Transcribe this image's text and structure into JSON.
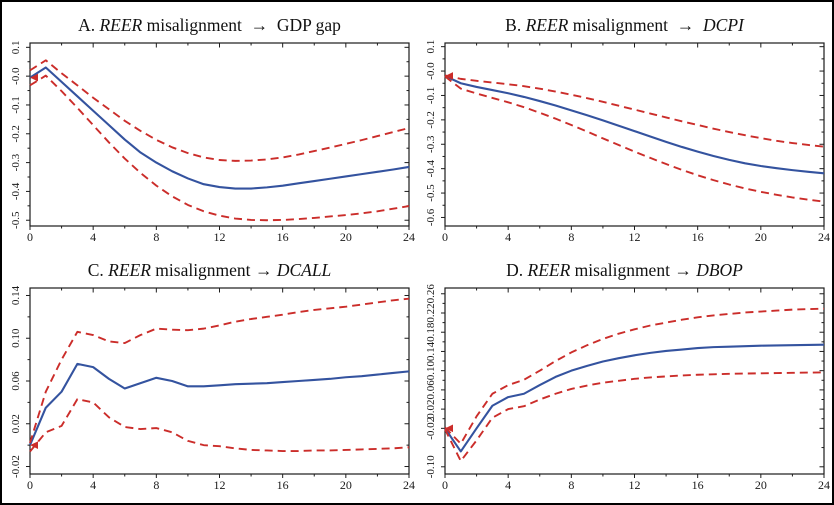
{
  "figure": {
    "background": "#ffffff",
    "border_color": "#000000"
  },
  "colors": {
    "irf_line": "#34539f",
    "ci_line": "#cb2d2a",
    "axis": "#1c1c1c",
    "tick_label": "#1a1a1a"
  },
  "chart_data": [
    {
      "type": "line",
      "panel": "A",
      "title_plain": "A. REER misalignment  →  GDP gap",
      "title_segments": [
        {
          "text": "A. ",
          "italic": false
        },
        {
          "text": "REER",
          "italic": true
        },
        {
          "text": " misalignment ",
          "italic": false
        },
        {
          "text": " → ",
          "italic": false
        },
        {
          "text": " GDP gap",
          "italic": false
        }
      ],
      "xlabel": "",
      "ylabel": "",
      "grid": false,
      "frame": true,
      "legend": null,
      "xlim": [
        0,
        24
      ],
      "ylim": [
        -0.52,
        0.115
      ],
      "xticks": {
        "values": [
          0,
          4,
          8,
          12,
          16,
          20,
          24
        ],
        "labels": [
          "0",
          "4",
          "8",
          "12",
          "16",
          "20",
          "24"
        ]
      },
      "xminor": [
        2,
        6,
        10,
        14,
        18,
        22
      ],
      "yticks": {
        "values": [
          0.1,
          0,
          -0.1,
          -0.2,
          -0.3,
          -0.4,
          -0.5
        ],
        "labels": [
          "0.1",
          "-0.0",
          "-0.1",
          "-0.2",
          "-0.3",
          "-0.4",
          "-0.5"
        ]
      },
      "x": [
        0,
        1,
        2,
        3,
        4,
        5,
        6,
        7,
        8,
        9,
        10,
        11,
        12,
        13,
        14,
        15,
        16,
        17,
        18,
        19,
        20,
        21,
        22,
        23,
        24
      ],
      "series": [
        {
          "name": "impulse response",
          "style": "solid",
          "color_key": "irf_line",
          "values": [
            -0.005,
            0.03,
            -0.02,
            -0.07,
            -0.12,
            -0.17,
            -0.22,
            -0.265,
            -0.3,
            -0.33,
            -0.355,
            -0.375,
            -0.385,
            -0.39,
            -0.39,
            -0.386,
            -0.38,
            -0.372,
            -0.364,
            -0.356,
            -0.348,
            -0.34,
            -0.332,
            -0.324,
            -0.315
          ]
        },
        {
          "name": "upper confidence band",
          "style": "dashed",
          "color_key": "ci_line",
          "values": [
            0.02,
            0.055,
            0.01,
            -0.032,
            -0.075,
            -0.115,
            -0.155,
            -0.19,
            -0.221,
            -0.247,
            -0.267,
            -0.282,
            -0.291,
            -0.294,
            -0.293,
            -0.289,
            -0.282,
            -0.272,
            -0.26,
            -0.248,
            -0.235,
            -0.222,
            -0.208,
            -0.194,
            -0.18
          ]
        },
        {
          "name": "lower confidence band",
          "style": "dashed",
          "color_key": "ci_line",
          "values": [
            -0.032,
            0.002,
            -0.052,
            -0.11,
            -0.17,
            -0.23,
            -0.286,
            -0.336,
            -0.38,
            -0.417,
            -0.447,
            -0.469,
            -0.484,
            -0.494,
            -0.499,
            -0.5,
            -0.499,
            -0.496,
            -0.492,
            -0.487,
            -0.482,
            -0.476,
            -0.469,
            -0.46,
            -0.451
          ]
        }
      ],
      "start_marker": {
        "shape": "left-arrow",
        "color_key": "ci_line"
      }
    },
    {
      "type": "line",
      "panel": "B",
      "title_plain": "B. REER misalignment  →  DCPI",
      "title_segments": [
        {
          "text": "B. ",
          "italic": false
        },
        {
          "text": "REER",
          "italic": true
        },
        {
          "text": " misalignment ",
          "italic": false
        },
        {
          "text": " → ",
          "italic": false
        },
        {
          "text": " DCPI",
          "italic": true
        }
      ],
      "xlabel": "",
      "ylabel": "",
      "grid": false,
      "frame": true,
      "legend": null,
      "xlim": [
        0,
        24
      ],
      "ylim": [
        -0.635,
        0.115
      ],
      "xticks": {
        "values": [
          0,
          4,
          8,
          12,
          16,
          20,
          24
        ],
        "labels": [
          "0",
          "4",
          "8",
          "12",
          "16",
          "20",
          "24"
        ]
      },
      "xminor": [
        2,
        6,
        10,
        14,
        18,
        22
      ],
      "yticks": {
        "values": [
          0.1,
          0,
          -0.1,
          -0.2,
          -0.3,
          -0.4,
          -0.5,
          -0.6
        ],
        "labels": [
          "0.1",
          "-0.0",
          "-0.1",
          "-0.2",
          "-0.3",
          "-0.4",
          "-0.5",
          "-0.6"
        ]
      },
      "x": [
        0,
        1,
        2,
        3,
        4,
        5,
        6,
        7,
        8,
        9,
        10,
        11,
        12,
        13,
        14,
        15,
        16,
        17,
        18,
        19,
        20,
        21,
        22,
        23,
        24
      ],
      "series": [
        {
          "name": "impulse response",
          "style": "solid",
          "color_key": "irf_line",
          "values": [
            -0.02,
            -0.05,
            -0.065,
            -0.078,
            -0.091,
            -0.106,
            -0.123,
            -0.141,
            -0.161,
            -0.181,
            -0.202,
            -0.224,
            -0.246,
            -0.268,
            -0.29,
            -0.311,
            -0.33,
            -0.348,
            -0.364,
            -0.378,
            -0.389,
            -0.398,
            -0.406,
            -0.413,
            -0.419
          ]
        },
        {
          "name": "upper confidence band",
          "style": "dashed",
          "color_key": "ci_line",
          "values": [
            -0.018,
            -0.032,
            -0.04,
            -0.047,
            -0.054,
            -0.062,
            -0.072,
            -0.084,
            -0.097,
            -0.111,
            -0.126,
            -0.142,
            -0.158,
            -0.174,
            -0.19,
            -0.206,
            -0.221,
            -0.236,
            -0.25,
            -0.263,
            -0.275,
            -0.286,
            -0.295,
            -0.303,
            -0.31
          ]
        },
        {
          "name": "lower confidence band",
          "style": "dashed",
          "color_key": "ci_line",
          "values": [
            -0.022,
            -0.072,
            -0.092,
            -0.11,
            -0.128,
            -0.148,
            -0.171,
            -0.195,
            -0.221,
            -0.248,
            -0.276,
            -0.303,
            -0.33,
            -0.356,
            -0.381,
            -0.405,
            -0.427,
            -0.447,
            -0.465,
            -0.481,
            -0.495,
            -0.507,
            -0.518,
            -0.527,
            -0.535
          ]
        }
      ],
      "start_marker": {
        "shape": "left-arrow",
        "color_key": "ci_line"
      }
    },
    {
      "type": "line",
      "panel": "C",
      "title_plain": "C. REER misalignment → DCALL",
      "title_segments": [
        {
          "text": "C. ",
          "italic": false
        },
        {
          "text": "REER",
          "italic": true
        },
        {
          "text": " misalignment ",
          "italic": false
        },
        {
          "text": "→ ",
          "italic": false
        },
        {
          "text": "DCALL",
          "italic": true
        }
      ],
      "xlabel": "",
      "ylabel": "",
      "grid": false,
      "frame": true,
      "legend": null,
      "xlim": [
        0,
        24
      ],
      "ylim": [
        -0.027,
        0.147
      ],
      "xticks": {
        "values": [
          0,
          4,
          8,
          12,
          16,
          20,
          24
        ],
        "labels": [
          "0",
          "4",
          "8",
          "12",
          "16",
          "20",
          "24"
        ]
      },
      "xminor": [
        2,
        6,
        10,
        14,
        18,
        22
      ],
      "yticks": {
        "values": [
          0.14,
          0.1,
          0.06,
          0.02,
          -0.02
        ],
        "labels": [
          "0.14",
          "0.10",
          "0.06",
          "0.02",
          "-0.02"
        ]
      },
      "x": [
        0,
        1,
        2,
        3,
        4,
        5,
        6,
        7,
        8,
        9,
        10,
        11,
        12,
        13,
        14,
        15,
        16,
        17,
        18,
        19,
        20,
        21,
        22,
        23,
        24
      ],
      "series": [
        {
          "name": "impulse response",
          "style": "solid",
          "color_key": "irf_line",
          "values": [
            0,
            0.035,
            0.05,
            0.076,
            0.073,
            0.062,
            0.053,
            0.058,
            0.063,
            0.06,
            0.055,
            0.055,
            0.056,
            0.057,
            0.0575,
            0.058,
            0.059,
            0.06,
            0.061,
            0.062,
            0.0635,
            0.0645,
            0.066,
            0.0675,
            0.069
          ]
        },
        {
          "name": "upper confidence band",
          "style": "dashed",
          "color_key": "ci_line",
          "values": [
            0.002,
            0.05,
            0.08,
            0.106,
            0.103,
            0.097,
            0.0955,
            0.103,
            0.109,
            0.108,
            0.1075,
            0.109,
            0.112,
            0.1155,
            0.118,
            0.12,
            0.122,
            0.1245,
            0.1265,
            0.128,
            0.1295,
            0.1315,
            0.1335,
            0.1355,
            0.137
          ]
        },
        {
          "name": "lower confidence band",
          "style": "dashed",
          "color_key": "ci_line",
          "values": [
            -0.006,
            0.012,
            0.018,
            0.043,
            0.04,
            0.026,
            0.017,
            0.015,
            0.016,
            0.012,
            0.004,
            0,
            -0.001,
            -0.003,
            -0.0045,
            -0.005,
            -0.0055,
            -0.0055,
            -0.005,
            -0.005,
            -0.0045,
            -0.004,
            -0.0035,
            -0.003,
            -0.002
          ]
        }
      ],
      "start_marker": {
        "shape": "left-arrow",
        "color_key": "ci_line"
      }
    },
    {
      "type": "line",
      "panel": "D",
      "title_plain": "D. REER misalignment → DBOP",
      "title_segments": [
        {
          "text": "D. ",
          "italic": false
        },
        {
          "text": "REER",
          "italic": true
        },
        {
          "text": " misalignment ",
          "italic": false
        },
        {
          "text": "→ ",
          "italic": false
        },
        {
          "text": "DBOP",
          "italic": true
        }
      ],
      "xlabel": "",
      "ylabel": "",
      "grid": false,
      "frame": true,
      "legend": null,
      "xlim": [
        0,
        24
      ],
      "ylim": [
        -0.115,
        0.272
      ],
      "xticks": {
        "values": [
          0,
          4,
          8,
          12,
          16,
          20,
          24
        ],
        "labels": [
          "0",
          "4",
          "8",
          "12",
          "16",
          "20",
          "24"
        ]
      },
      "xminor": [
        2,
        6,
        10,
        14,
        18,
        22
      ],
      "yticks": {
        "values": [
          0.26,
          0.22,
          0.18,
          0.14,
          0.1,
          0.06,
          0.02,
          -0.02,
          -0.1
        ],
        "labels": [
          "0.26",
          "0.22",
          "0.18",
          "0.14",
          "0.10",
          "0.06",
          "0.02",
          "-0.02",
          "-0.10"
        ]
      },
      "x": [
        0,
        1,
        2,
        3,
        4,
        5,
        6,
        7,
        8,
        9,
        10,
        11,
        12,
        13,
        14,
        15,
        16,
        17,
        18,
        19,
        20,
        21,
        22,
        23,
        24
      ],
      "series": [
        {
          "name": "impulse response",
          "style": "solid",
          "color_key": "irf_line",
          "values": [
            -0.02,
            -0.068,
            -0.02,
            0.027,
            0.045,
            0.052,
            0.07,
            0.087,
            0.1,
            0.11,
            0.119,
            0.126,
            0.132,
            0.137,
            0.141,
            0.144,
            0.147,
            0.149,
            0.15,
            0.151,
            0.152,
            0.1525,
            0.153,
            0.1535,
            0.154
          ]
        },
        {
          "name": "upper confidence band",
          "style": "dashed",
          "color_key": "ci_line",
          "values": [
            -0.018,
            -0.052,
            0.005,
            0.052,
            0.07,
            0.081,
            0.1,
            0.12,
            0.138,
            0.153,
            0.166,
            0.177,
            0.186,
            0.194,
            0.2,
            0.206,
            0.211,
            0.215,
            0.218,
            0.221,
            0.223,
            0.225,
            0.227,
            0.228,
            0.229
          ]
        },
        {
          "name": "lower confidence band",
          "style": "dashed",
          "color_key": "ci_line",
          "values": [
            -0.022,
            -0.088,
            -0.045,
            0.002,
            0.02,
            0.026,
            0.04,
            0.052,
            0.062,
            0.069,
            0.075,
            0.079,
            0.083,
            0.086,
            0.088,
            0.09,
            0.0915,
            0.0925,
            0.0935,
            0.094,
            0.0945,
            0.095,
            0.0955,
            0.096,
            0.0965
          ]
        }
      ],
      "start_marker": {
        "shape": "left-arrow",
        "color_key": "ci_line"
      }
    }
  ]
}
